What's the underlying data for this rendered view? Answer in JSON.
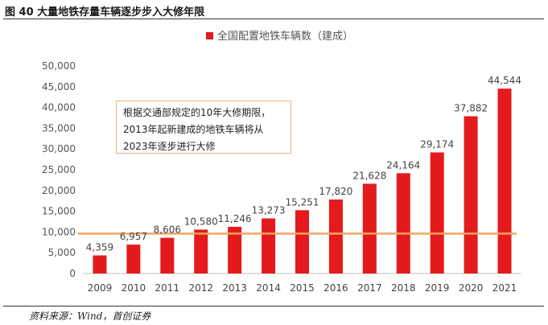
{
  "figure": {
    "title": "图 40 大量地铁存量车辆逐步步入大修年限",
    "source": "资料来源：Wind，首创证券",
    "note": "根据交通部规定的10年大修期限，2013年起新建成的地铁车辆将从2023年逐步进行大修"
  },
  "colors": {
    "bar": "#e41a1c",
    "reference_line": "#f4a460",
    "note_border": "#f4b183",
    "axis": "#bfbfbf"
  },
  "chart_data": {
    "type": "bar",
    "title": "",
    "xlabel": "",
    "ylabel": "",
    "legend": {
      "label": "全国配置地铁车辆数（建成）",
      "position": "top-center"
    },
    "categories": [
      "2009",
      "2010",
      "2011",
      "2012",
      "2013",
      "2014",
      "2015",
      "2016",
      "2017",
      "2018",
      "2019",
      "2020",
      "2021"
    ],
    "series": [
      {
        "name": "全国配置地铁车辆数（建成）",
        "values": [
          4359,
          6957,
          8606,
          10580,
          11246,
          13273,
          15251,
          17820,
          21628,
          24164,
          29174,
          37882,
          44544
        ],
        "labels": [
          "4,359",
          "6,957",
          "8,606",
          "10,580",
          "11,246",
          "13,273",
          "15,251",
          "17,820",
          "21,628",
          "24,164",
          "29,174",
          "37,882",
          "44,544"
        ]
      }
    ],
    "ylim": [
      0,
      50000
    ],
    "yticks": [
      0,
      5000,
      10000,
      15000,
      20000,
      25000,
      30000,
      35000,
      40000,
      45000,
      50000
    ],
    "ytick_labels": [
      "0",
      "5,000",
      "10,000",
      "15,000",
      "20,000",
      "25,000",
      "30,000",
      "35,000",
      "40,000",
      "45,000",
      "50,000"
    ],
    "reference_line": {
      "value": 10580
    },
    "grid": false
  }
}
